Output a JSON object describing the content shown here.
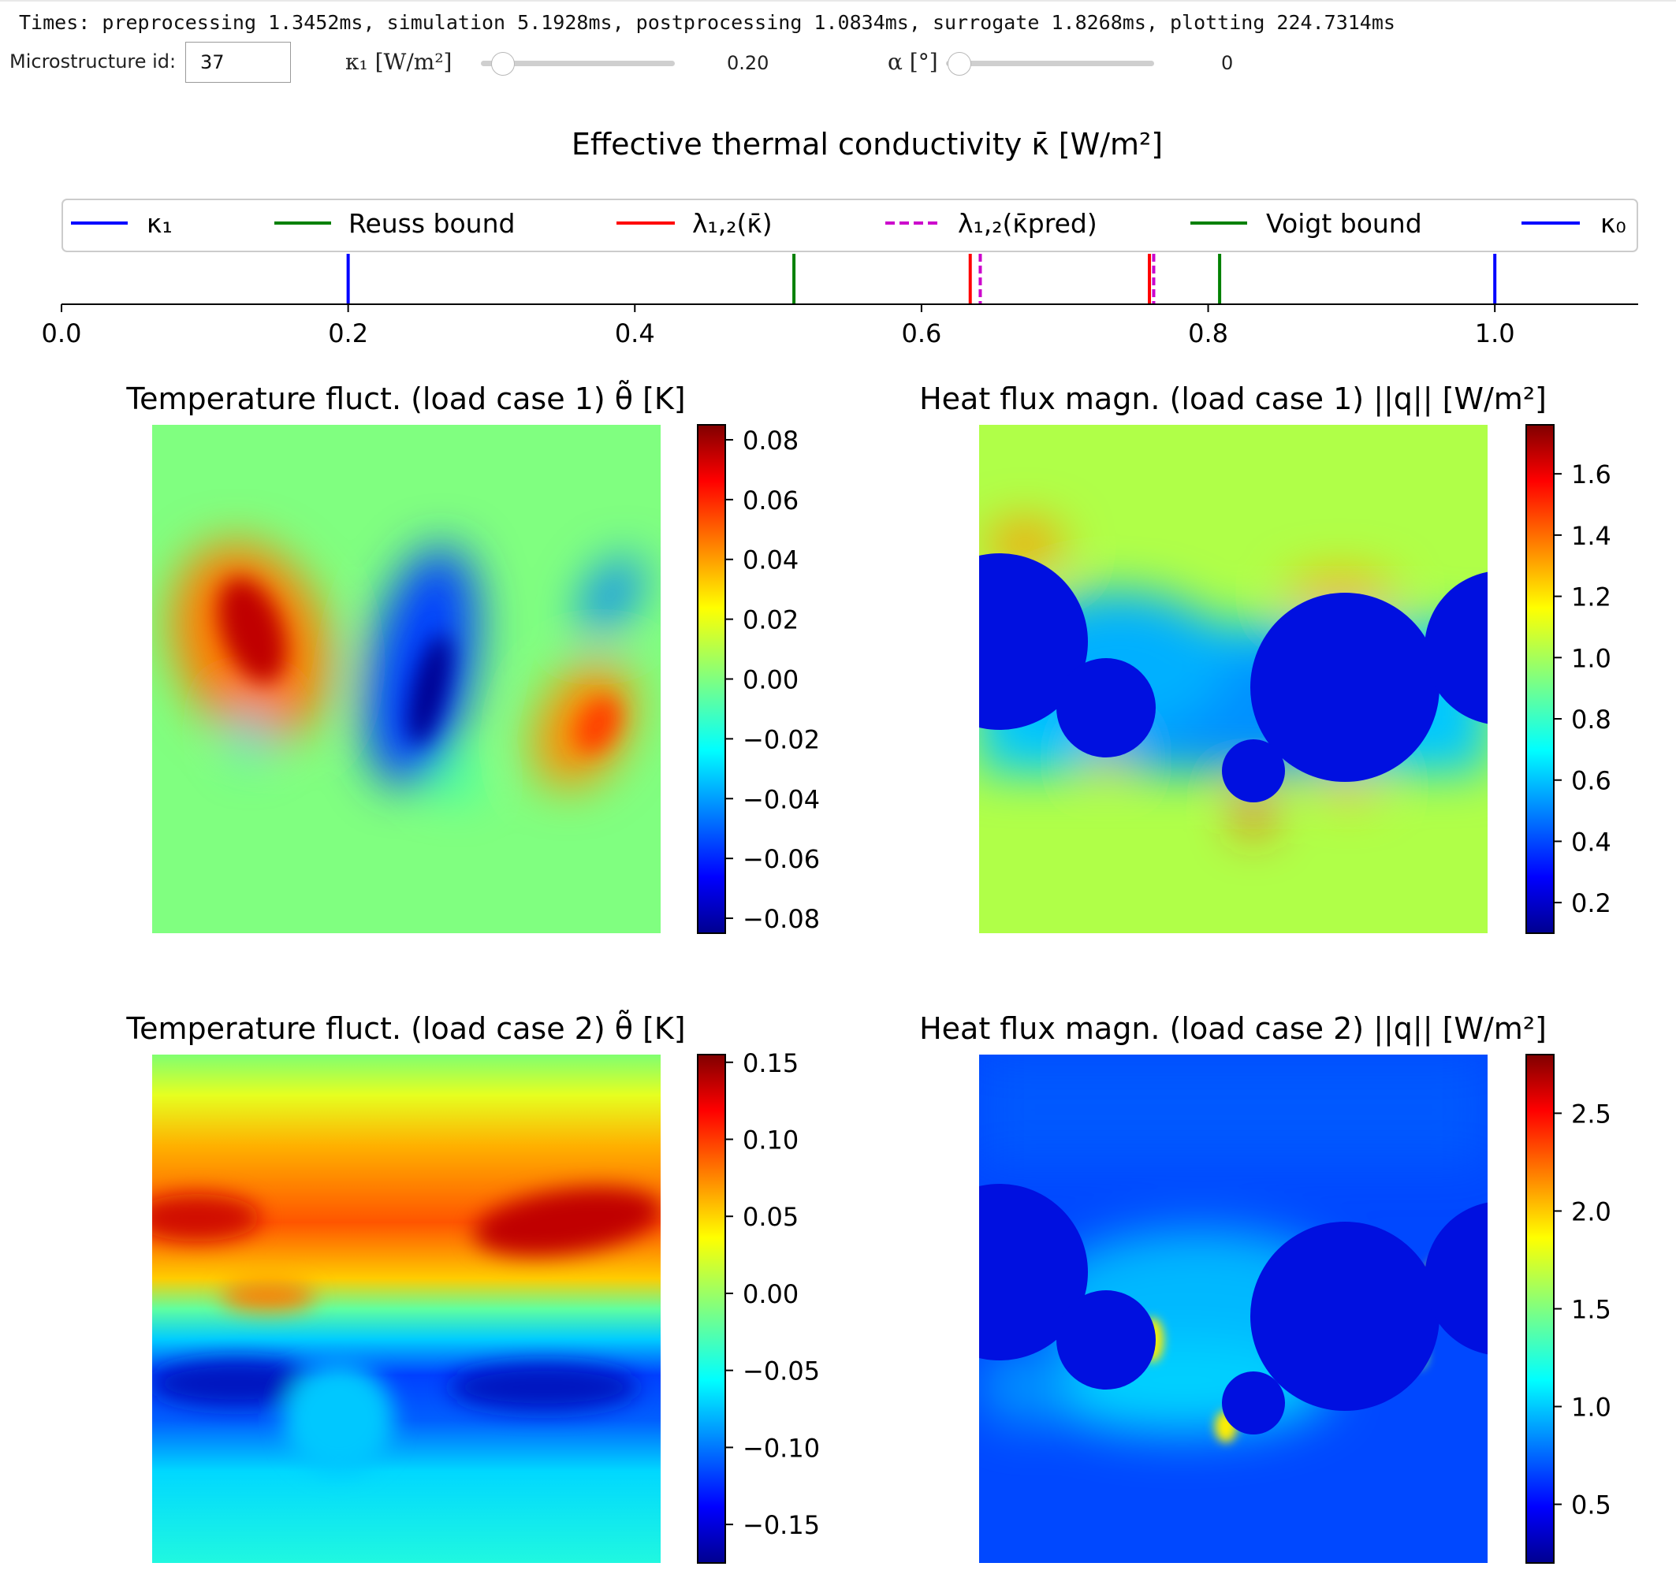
{
  "status": {
    "times": "Times: preprocessing 1.3452ms, simulation 5.1928ms, postprocessing 1.0834ms, surrogate 1.8268ms, plotting 224.7314ms"
  },
  "controls": {
    "microstructure_label": "Microstructure id:",
    "microstructure_value": "37",
    "kappa1_label": "κ₁ [W/m²]",
    "kappa1_value": "0.20",
    "kappa1_fraction": 0.0,
    "alpha_label": "α [°]",
    "alpha_value": "0",
    "alpha_fraction": 0.0
  },
  "figure": {
    "top_title": "Effective thermal conductivity κ̄ [W/m²]",
    "legend": [
      "κ₁",
      "Reuss bound",
      "λ₁,₂(κ̄)",
      "λ₁,₂(κ̄pred)",
      "Voigt bound",
      "κ₀"
    ],
    "panel_titles": {
      "temp1": "Temperature fluct. (load case 1) θ̃ [K]",
      "flux1": "Heat flux magn. (load case 1) ||q|| [W/m²]",
      "temp2": "Temperature fluct. (load case 2) θ̃ [K]",
      "flux2": "Heat flux magn. (load case 2) ||q|| [W/m²]"
    }
  },
  "chart_data": [
    {
      "type": "line",
      "title": "Effective thermal conductivity κ̄ [W/m²]",
      "xlim": [
        0.0,
        1.1
      ],
      "xticks": [
        "0.0",
        "0.2",
        "0.4",
        "0.6",
        "0.8",
        "1.0"
      ],
      "series": [
        {
          "name": "κ₁",
          "color": "#0000ff",
          "style": "solid",
          "values": [
            0.2
          ]
        },
        {
          "name": "Reuss bound",
          "color": "#008000",
          "style": "solid",
          "values": [
            0.511
          ]
        },
        {
          "name": "λ₁,₂(κ̄)",
          "color": "#ff0000",
          "style": "solid",
          "values": [
            0.634,
            0.759
          ]
        },
        {
          "name": "λ₁,₂(κ̄pred)",
          "color": "#cc00cc",
          "style": "dashed",
          "values": [
            0.641,
            0.762
          ]
        },
        {
          "name": "Voigt bound",
          "color": "#008000",
          "style": "solid",
          "values": [
            0.808
          ]
        },
        {
          "name": "κ₀",
          "color": "#0000ff",
          "style": "solid",
          "values": [
            1.0
          ]
        }
      ],
      "legend_position": "top"
    },
    {
      "type": "heatmap",
      "title": "Temperature fluct. (load case 1) θ̃ [K]",
      "colorbar_range": [
        -0.085,
        0.085
      ],
      "colorbar_ticks": [
        "0.08",
        "0.06",
        "0.04",
        "0.02",
        "0.00",
        "−0.02",
        "−0.04",
        "−0.06",
        "−0.08"
      ]
    },
    {
      "type": "heatmap",
      "title": "Heat flux magn. (load case 1) ||q|| [W/m²]",
      "colorbar_range": [
        0.1,
        1.76
      ],
      "colorbar_ticks": [
        "1.6",
        "1.4",
        "1.2",
        "1.0",
        "0.8",
        "0.6",
        "0.4",
        "0.2"
      ]
    },
    {
      "type": "heatmap",
      "title": "Temperature fluct. (load case 2) θ̃ [K]",
      "colorbar_range": [
        -0.175,
        0.155
      ],
      "colorbar_ticks": [
        "0.15",
        "0.10",
        "0.05",
        "0.00",
        "−0.05",
        "−0.10",
        "−0.15"
      ]
    },
    {
      "type": "heatmap",
      "title": "Heat flux magn. (load case 2) ||q|| [W/m²]",
      "colorbar_range": [
        0.2,
        2.8
      ],
      "colorbar_ticks": [
        "2.5",
        "2.0",
        "1.5",
        "1.0",
        "0.5"
      ]
    }
  ],
  "colors": {
    "jet_dark_red": "#800000",
    "jet_red": "#ff0000",
    "jet_orange": "#ff9900",
    "jet_yellow": "#ffff00",
    "jet_green": "#80ff80",
    "jet_cyan": "#00e0ff",
    "jet_blue": "#0033ff",
    "jet_dark_blue": "#000080"
  }
}
